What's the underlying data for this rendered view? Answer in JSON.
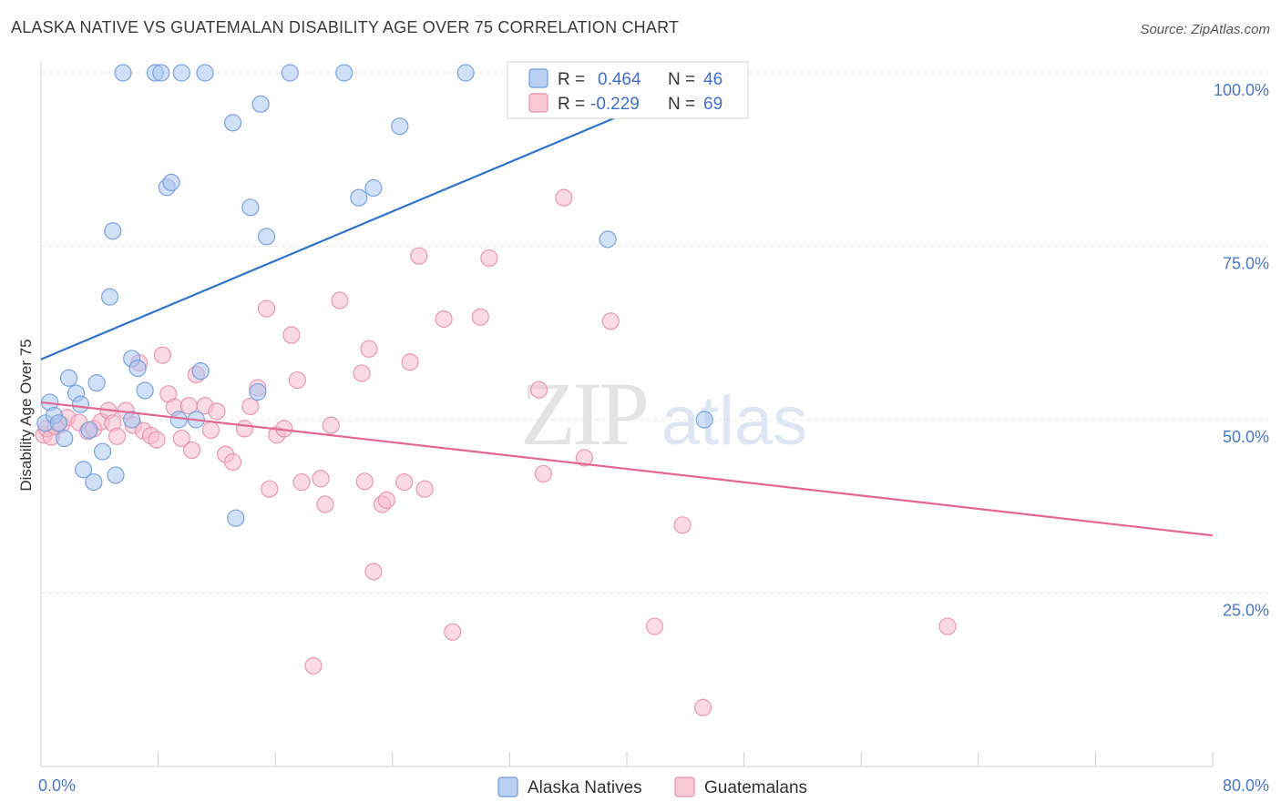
{
  "title": "ALASKA NATIVE VS GUATEMALAN DISABILITY AGE OVER 75 CORRELATION CHART",
  "source": "Source: ZipAtlas.com",
  "watermark": {
    "zip": "ZIP",
    "atlas": "atlas"
  },
  "colors": {
    "blue_fill": "#a9c6f0",
    "blue_stroke": "#6f9ad8",
    "blue_line": "#2f73c8",
    "pink_fill": "#f6bccd",
    "pink_stroke": "#e58fab",
    "pink_line": "#e06892",
    "grid": "#e4e4e4",
    "tick_text": "#4a78c2"
  },
  "legend": {
    "r_label": "R =",
    "n_label": "N =",
    "entries": [
      {
        "r": "0.464",
        "n": "46"
      },
      {
        "r": "-0.229",
        "n": "69"
      }
    ]
  },
  "bottom_legend": [
    "Alaska Natives",
    "Guatemalans"
  ],
  "chart_data": {
    "type": "scatter",
    "title": "ALASKA NATIVE VS GUATEMALAN DISABILITY AGE OVER 75 CORRELATION CHART",
    "xlabel": "",
    "ylabel": "Disability Age Over 75",
    "xlim": [
      0,
      80
    ],
    "ylim": [
      0,
      100
    ],
    "x_tick_labels": [
      "0.0%",
      "80.0%"
    ],
    "y_ticks": [
      25,
      50,
      75,
      100
    ],
    "y_tick_labels": [
      "25.0%",
      "50.0%",
      "75.0%",
      "100.0%"
    ],
    "grid": true,
    "legend_position": "top-center",
    "series": [
      {
        "name": "Alaska Natives",
        "r": 0.464,
        "n": 46,
        "trend": {
          "x": [
            0,
            46.5
          ],
          "y": [
            58.7,
            100
          ]
        },
        "points": [
          [
            0.3,
            49.5
          ],
          [
            0.6,
            52.5
          ],
          [
            0.9,
            50.6
          ],
          [
            1.2,
            49.5
          ],
          [
            1.6,
            47.3
          ],
          [
            1.9,
            56.0
          ],
          [
            2.4,
            53.8
          ],
          [
            2.7,
            52.2
          ],
          [
            2.9,
            42.8
          ],
          [
            3.3,
            48.5
          ],
          [
            3.6,
            41.0
          ],
          [
            3.8,
            55.3
          ],
          [
            4.2,
            45.4
          ],
          [
            4.9,
            77.2
          ],
          [
            5.1,
            42.0
          ],
          [
            4.7,
            67.7
          ],
          [
            5.6,
            100.0
          ],
          [
            6.2,
            58.8
          ],
          [
            6.6,
            57.4
          ],
          [
            6.2,
            50.0
          ],
          [
            7.1,
            54.2
          ],
          [
            7.8,
            100.0
          ],
          [
            8.2,
            100.0
          ],
          [
            8.6,
            83.5
          ],
          [
            8.9,
            84.2
          ],
          [
            9.4,
            50.0
          ],
          [
            9.6,
            100.0
          ],
          [
            10.6,
            50.0
          ],
          [
            10.9,
            57.0
          ],
          [
            11.2,
            100.0
          ],
          [
            13.1,
            92.8
          ],
          [
            13.3,
            35.8
          ],
          [
            14.3,
            80.6
          ],
          [
            14.8,
            54.0
          ],
          [
            15.0,
            95.5
          ],
          [
            15.4,
            76.4
          ],
          [
            17.0,
            100.0
          ],
          [
            20.7,
            100.0
          ],
          [
            21.7,
            82.0
          ],
          [
            22.7,
            83.4
          ],
          [
            24.5,
            92.3
          ],
          [
            29.0,
            100.0
          ],
          [
            37.8,
            100.0
          ],
          [
            38.7,
            76.0
          ],
          [
            41.5,
            100.0
          ],
          [
            45.3,
            50.0
          ]
        ]
      },
      {
        "name": "Guatemalans",
        "r": -0.229,
        "n": 69,
        "trend": {
          "x": [
            0,
            80
          ],
          "y": [
            52.5,
            33.3
          ]
        },
        "points": [
          [
            0.2,
            47.8
          ],
          [
            0.4,
            48.7
          ],
          [
            0.7,
            47.5
          ],
          [
            1.0,
            49.0
          ],
          [
            1.4,
            49.3
          ],
          [
            1.8,
            50.3
          ],
          [
            2.6,
            49.6
          ],
          [
            3.2,
            48.3
          ],
          [
            3.6,
            48.7
          ],
          [
            4.1,
            49.7
          ],
          [
            4.6,
            51.3
          ],
          [
            4.9,
            49.5
          ],
          [
            5.2,
            47.6
          ],
          [
            5.8,
            51.3
          ],
          [
            6.3,
            49.2
          ],
          [
            6.7,
            58.2
          ],
          [
            7.0,
            48.4
          ],
          [
            7.5,
            47.7
          ],
          [
            7.9,
            47.1
          ],
          [
            8.3,
            59.3
          ],
          [
            8.7,
            53.7
          ],
          [
            9.1,
            51.8
          ],
          [
            9.6,
            47.3
          ],
          [
            10.1,
            52.0
          ],
          [
            10.3,
            45.6
          ],
          [
            10.6,
            56.5
          ],
          [
            11.2,
            52.0
          ],
          [
            11.6,
            48.5
          ],
          [
            12.0,
            51.2
          ],
          [
            12.6,
            45.0
          ],
          [
            13.1,
            43.9
          ],
          [
            13.9,
            48.7
          ],
          [
            14.3,
            51.9
          ],
          [
            14.8,
            54.6
          ],
          [
            15.4,
            66.0
          ],
          [
            15.6,
            40.0
          ],
          [
            16.1,
            47.8
          ],
          [
            16.6,
            48.7
          ],
          [
            17.1,
            62.2
          ],
          [
            17.5,
            55.7
          ],
          [
            17.8,
            41.0
          ],
          [
            18.6,
            14.5
          ],
          [
            19.1,
            41.5
          ],
          [
            19.4,
            37.8
          ],
          [
            19.8,
            49.2
          ],
          [
            20.4,
            67.2
          ],
          [
            21.9,
            56.7
          ],
          [
            22.1,
            41.1
          ],
          [
            22.4,
            60.2
          ],
          [
            22.7,
            28.1
          ],
          [
            23.3,
            37.8
          ],
          [
            23.6,
            38.4
          ],
          [
            24.8,
            41.0
          ],
          [
            25.2,
            58.3
          ],
          [
            25.8,
            73.6
          ],
          [
            26.2,
            40.0
          ],
          [
            27.5,
            64.5
          ],
          [
            28.1,
            19.4
          ],
          [
            30.0,
            64.8
          ],
          [
            30.6,
            73.3
          ],
          [
            34.0,
            54.3
          ],
          [
            34.3,
            42.2
          ],
          [
            35.7,
            82.0
          ],
          [
            37.1,
            44.5
          ],
          [
            38.9,
            64.2
          ],
          [
            41.9,
            20.2
          ],
          [
            43.8,
            34.8
          ],
          [
            45.2,
            8.5
          ],
          [
            61.9,
            20.2
          ]
        ]
      }
    ]
  }
}
